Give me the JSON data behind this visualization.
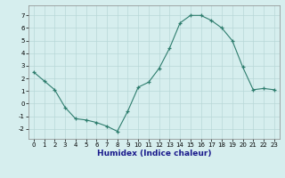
{
  "x": [
    0,
    1,
    2,
    3,
    4,
    5,
    6,
    7,
    8,
    9,
    10,
    11,
    12,
    13,
    14,
    15,
    16,
    17,
    18,
    19,
    20,
    21,
    22,
    23
  ],
  "y": [
    2.5,
    1.8,
    1.1,
    -0.3,
    -1.2,
    -1.3,
    -1.5,
    -1.8,
    -2.2,
    -0.6,
    1.3,
    1.7,
    2.8,
    4.4,
    6.4,
    7.0,
    7.0,
    6.6,
    6.0,
    5.0,
    2.9,
    1.1,
    1.2,
    1.1
  ],
  "xlabel": "Humidex (Indice chaleur)",
  "ylim": [
    -2.8,
    7.8
  ],
  "yticks": [
    -2,
    -1,
    0,
    1,
    2,
    3,
    4,
    5,
    6,
    7
  ],
  "xticks": [
    0,
    1,
    2,
    3,
    4,
    5,
    6,
    7,
    8,
    9,
    10,
    11,
    12,
    13,
    14,
    15,
    16,
    17,
    18,
    19,
    20,
    21,
    22,
    23
  ],
  "line_color": "#2e7d6e",
  "marker": "+",
  "bg_color": "#d6eeee",
  "grid_color": "#b8d8d8",
  "spine_color": "#888888",
  "xlabel_color": "#1a1a8c",
  "xlabel_fontsize": 6.5,
  "tick_fontsize": 5.0
}
